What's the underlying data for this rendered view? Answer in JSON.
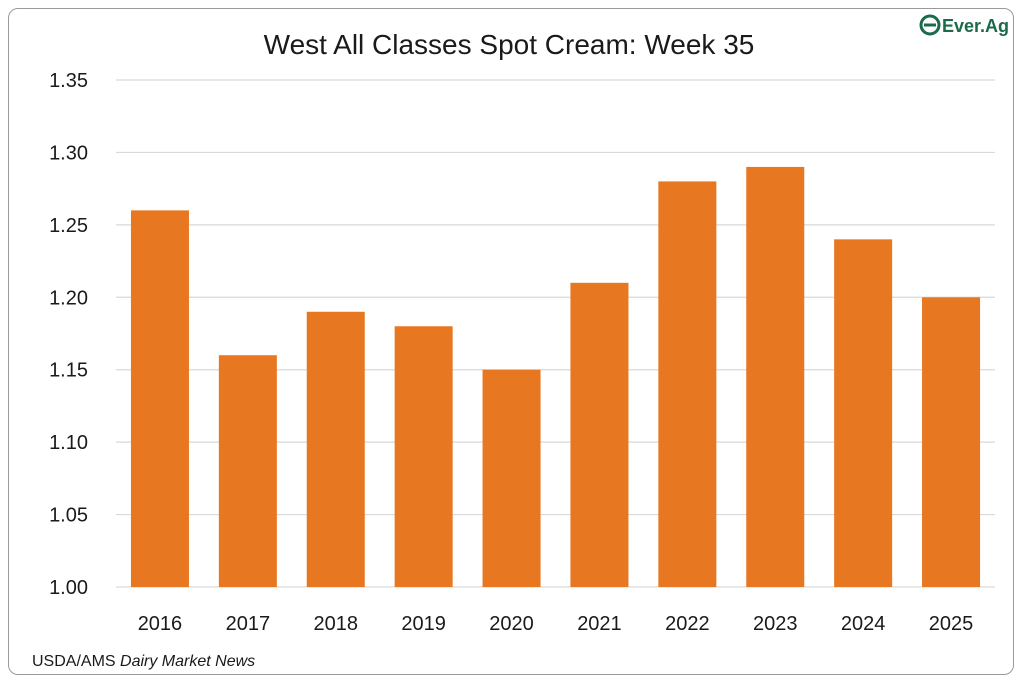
{
  "chart_data": {
    "type": "bar",
    "title": "West All Classes Spot Cream: Week 35",
    "xlabel": "",
    "ylabel": "",
    "categories": [
      "2016",
      "2017",
      "2018",
      "2019",
      "2020",
      "2021",
      "2022",
      "2023",
      "2024",
      "2025"
    ],
    "values": [
      1.26,
      1.16,
      1.19,
      1.18,
      1.15,
      1.21,
      1.28,
      1.29,
      1.24,
      1.2
    ],
    "ylim": [
      1.0,
      1.35
    ],
    "yticks": [
      "1.00",
      "1.05",
      "1.10",
      "1.15",
      "1.20",
      "1.25",
      "1.30",
      "1.35"
    ],
    "grid": true,
    "bar_color": "#E87722",
    "gridline_color": "#d9d9d9"
  },
  "source": {
    "prefix": "USDA/AMS ",
    "italic": "Dairy Market News"
  },
  "logo": {
    "text": "Ever.Ag",
    "icon": "ever-ag-logo-icon",
    "color": "#1B6B4A"
  }
}
